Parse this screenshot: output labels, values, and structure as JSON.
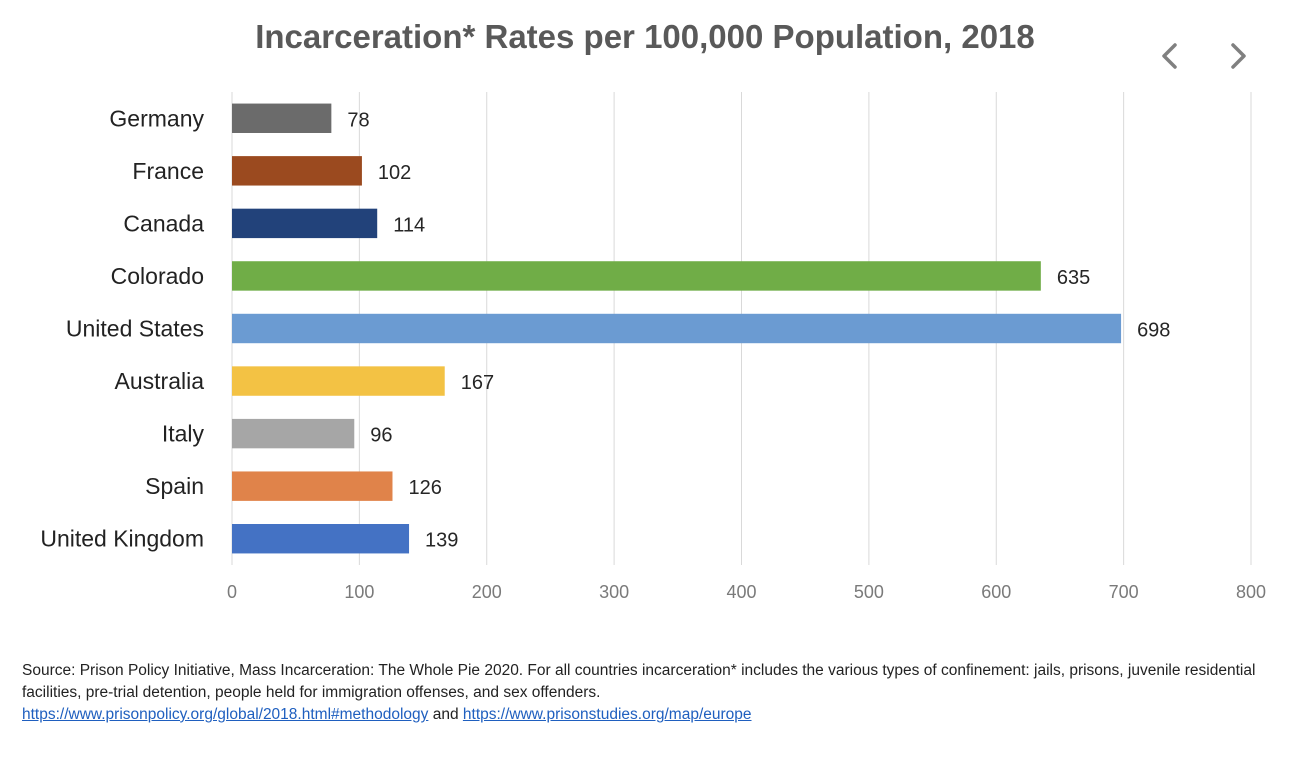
{
  "nav": {
    "prev_icon": "chevron-left-icon",
    "next_icon": "chevron-right-icon"
  },
  "chart_data": {
    "type": "bar",
    "orientation": "horizontal",
    "title": "Incarceration* Rates per 100,000 Population, 2018",
    "categories": [
      "Germany",
      "France",
      "Canada",
      "Colorado",
      "United States",
      "Australia",
      "Italy",
      "Spain",
      "United Kingdom"
    ],
    "values": [
      78,
      102,
      114,
      635,
      698,
      167,
      96,
      126,
      139
    ],
    "colors": [
      "#6b6b6b",
      "#9b4a1f",
      "#22427a",
      "#70ad47",
      "#6b9bd2",
      "#f3c244",
      "#a6a6a6",
      "#e0834a",
      "#4472c4"
    ],
    "xlim": [
      0,
      800
    ],
    "xticks": [
      "0",
      "100",
      "200",
      "300",
      "400",
      "500",
      "600",
      "700",
      "800"
    ],
    "grid": true,
    "legend": "none"
  },
  "footer": {
    "source_text": "Source: Prison Policy Initiative, Mass Incarceration: The Whole Pie 2020. For all countries incarceration* includes the various types of confinement: jails, prisons, juvenile residential facilities, pre-trial detention, people held for immigration offenses, and sex offenders.",
    "link1": "https://www.prisonpolicy.org/global/2018.html#methodology",
    "connector": "and",
    "link2": "https://www.prisonstudies.org/map/europe"
  }
}
